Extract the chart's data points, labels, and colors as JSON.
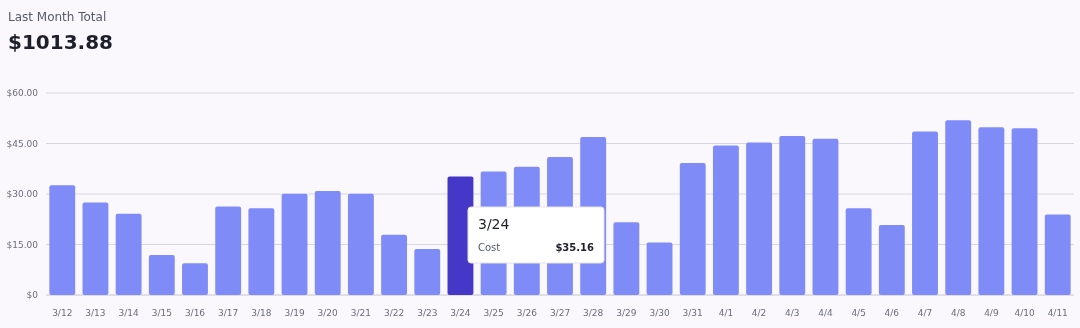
{
  "chart_data": {
    "type": "bar",
    "title": "Last Month Total",
    "subtitle": "$1013.88",
    "categories": [
      "3/12",
      "3/13",
      "3/14",
      "3/15",
      "3/16",
      "3/17",
      "3/18",
      "3/19",
      "3/20",
      "3/21",
      "3/22",
      "3/23",
      "3/24",
      "3/25",
      "3/26",
      "3/27",
      "3/28",
      "3/29",
      "3/30",
      "3/31",
      "4/1",
      "4/2",
      "4/3",
      "4/4",
      "4/5",
      "4/6",
      "4/7",
      "4/8",
      "4/9",
      "4/10",
      "4/11"
    ],
    "values": [
      32.6,
      27.5,
      24.1,
      11.9,
      9.4,
      26.3,
      25.8,
      30.1,
      30.9,
      30.1,
      17.9,
      13.7,
      35.2,
      36.7,
      38.1,
      41.0,
      46.9,
      21.6,
      15.6,
      39.2,
      44.4,
      45.3,
      47.2,
      46.4,
      25.8,
      20.8,
      48.6,
      51.9,
      49.8,
      49.5,
      23.9
    ],
    "colors": [
      "#7f8cf7",
      "#7f8cf7",
      "#7f8cf7",
      "#7f8cf7",
      "#7f8cf7",
      "#7f8cf7",
      "#7f8cf7",
      "#7f8cf7",
      "#7f8cf7",
      "#7f8cf7",
      "#7f8cf7",
      "#7f8cf7",
      "#4538c9",
      "#7f8cf7",
      "#7f8cf7",
      "#7f8cf7",
      "#7f8cf7",
      "#7f8cf7",
      "#7f8cf7",
      "#7f8cf7",
      "#7f8cf7",
      "#7f8cf7",
      "#7f8cf7",
      "#7f8cf7",
      "#7f8cf7",
      "#7f8cf7",
      "#7f8cf7",
      "#7f8cf7",
      "#7f8cf7",
      "#7f8cf7",
      "#7f8cf7"
    ],
    "annotations": [
      "3/24",
      "Cost",
      "$35.16"
    ],
    "ylim": [
      0,
      60
    ],
    "yticks": [
      {
        "value": 0,
        "label": "$0"
      },
      {
        "value": 15,
        "label": "$15.00"
      },
      {
        "value": 30,
        "label": "$30.00"
      },
      {
        "value": 45,
        "label": "$45.00"
      },
      {
        "value": 60,
        "label": "$60.00"
      }
    ],
    "grid": "y"
  }
}
